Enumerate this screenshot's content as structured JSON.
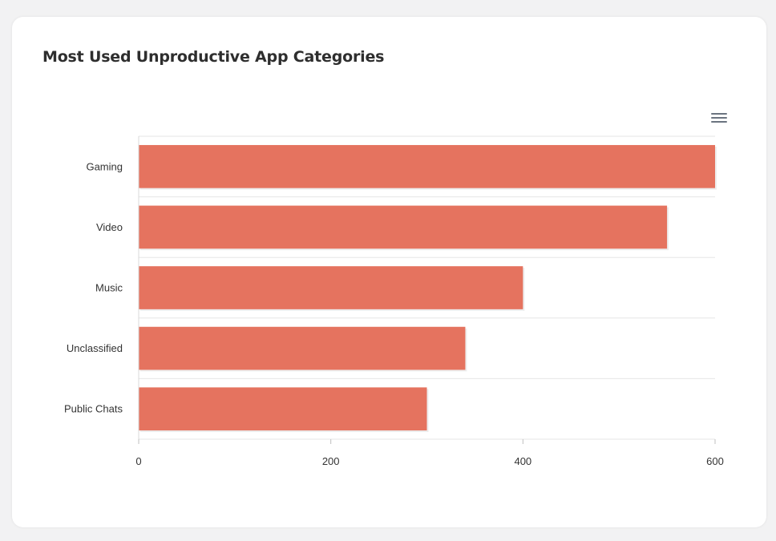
{
  "chart_data": {
    "type": "bar",
    "orientation": "horizontal",
    "title": "Most Used Unproductive App Categories",
    "categories": [
      "Gaming",
      "Video",
      "Music",
      "Unclassified",
      "Public Chats"
    ],
    "values": [
      600,
      550,
      400,
      340,
      300
    ],
    "xlim": [
      0,
      600
    ],
    "xticks": [
      0,
      200,
      400,
      600
    ],
    "xtick_labels": [
      "0",
      "200",
      "400",
      "600"
    ],
    "grid": true,
    "legend": "none",
    "bar_color": "#e5735f"
  },
  "toolbar": {
    "menu_icon": "hamburger-menu-icon"
  }
}
